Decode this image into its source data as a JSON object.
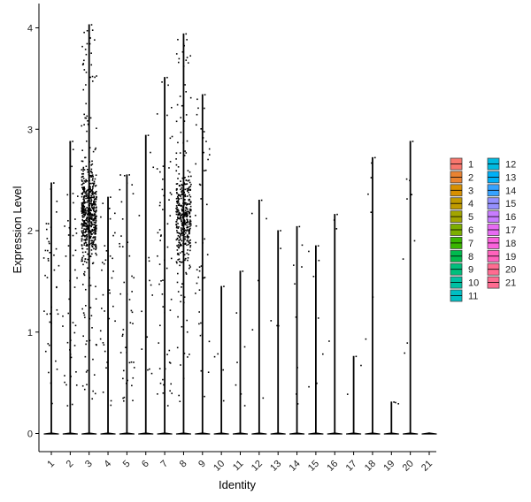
{
  "chart_data": {
    "type": "violin",
    "title": "",
    "xlabel": "Identity",
    "ylabel": "Expression Level",
    "ylim": [
      -0.2,
      4.25
    ],
    "yticks": [
      0,
      1,
      2,
      3,
      4
    ],
    "categories": [
      "1",
      "2",
      "3",
      "4",
      "5",
      "6",
      "7",
      "8",
      "9",
      "10",
      "11",
      "12",
      "13",
      "14",
      "15",
      "16",
      "17",
      "18",
      "19",
      "20",
      "21"
    ],
    "max_values": [
      2.47,
      2.88,
      4.03,
      2.33,
      2.55,
      2.94,
      3.51,
      3.94,
      3.34,
      1.45,
      1.6,
      2.3,
      2.0,
      2.04,
      1.85,
      2.16,
      0.76,
      2.72,
      0.31,
      2.88,
      0.0
    ],
    "point_density": [
      40,
      45,
      620,
      35,
      45,
      14,
      60,
      420,
      45,
      4,
      6,
      5,
      4,
      8,
      8,
      3,
      2,
      6,
      2,
      8,
      0
    ],
    "legend": {
      "position": "right",
      "entries": [
        {
          "label": "1",
          "color": "#F8766D"
        },
        {
          "label": "2",
          "color": "#EA8331"
        },
        {
          "label": "3",
          "color": "#D89000"
        },
        {
          "label": "4",
          "color": "#C09B00"
        },
        {
          "label": "5",
          "color": "#A3A500"
        },
        {
          "label": "6",
          "color": "#7CAE00"
        },
        {
          "label": "7",
          "color": "#39B600"
        },
        {
          "label": "8",
          "color": "#00BB4E"
        },
        {
          "label": "9",
          "color": "#00BF7D"
        },
        {
          "label": "10",
          "color": "#00C1A3"
        },
        {
          "label": "11",
          "color": "#00BFC4"
        },
        {
          "label": "12",
          "color": "#00BAE0"
        },
        {
          "label": "13",
          "color": "#00B0F6"
        },
        {
          "label": "14",
          "color": "#35A2FF"
        },
        {
          "label": "15",
          "color": "#9590FF"
        },
        {
          "label": "16",
          "color": "#C77CFF"
        },
        {
          "label": "17",
          "color": "#E76BF3"
        },
        {
          "label": "18",
          "color": "#FA62DB"
        },
        {
          "label": "19",
          "color": "#FF62BC"
        },
        {
          "label": "20",
          "color": "#FF6C91"
        },
        {
          "label": "21",
          "color": "#FF6C91"
        }
      ]
    }
  }
}
